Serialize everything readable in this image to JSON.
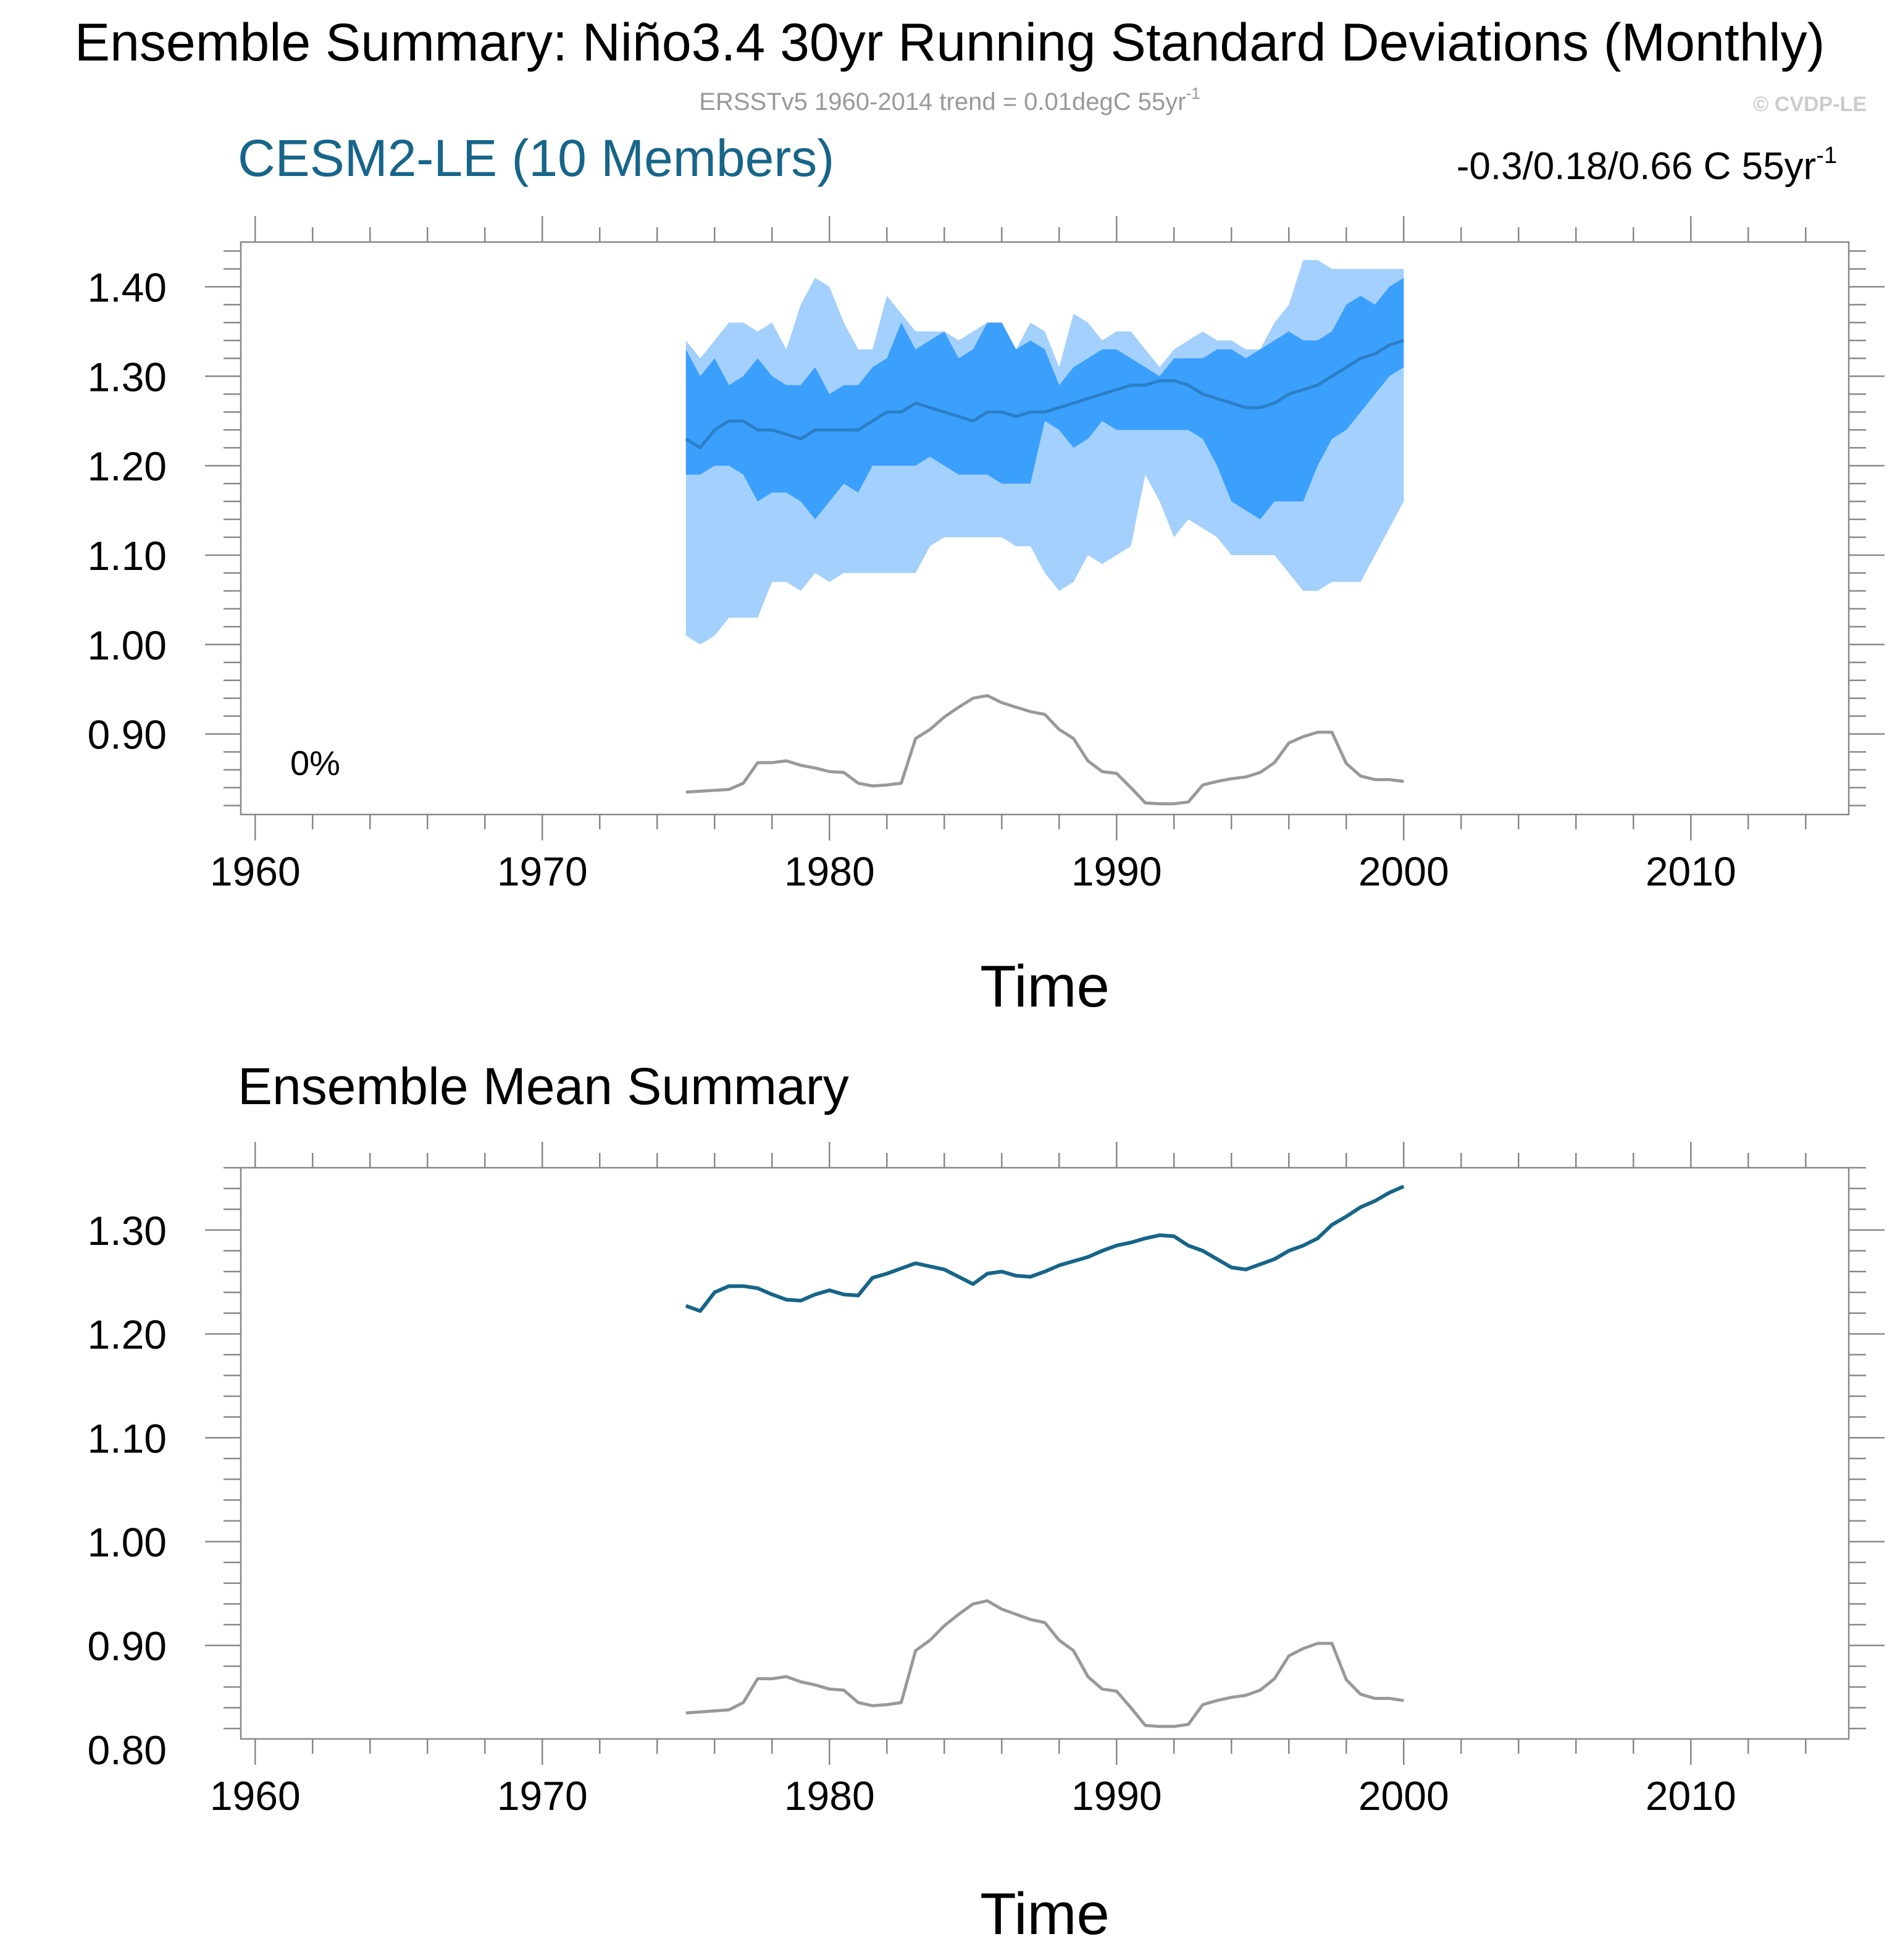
{
  "title": "Ensemble Summary: Niño3.4 30yr Running Standard Deviations (Monthly)",
  "subtitle": {
    "text": "ERSSTv5 1960-2014 trend = 0.01degC 55yr",
    "sup": "-1"
  },
  "copyright": "© CVDP-LE",
  "panel1": {
    "title": "CESM2-LE (10 Members)",
    "stats": {
      "text": "-0.3/0.18/0.66 C 55yr",
      "sup": "-1"
    },
    "percent": "0%",
    "xlabel": "Time"
  },
  "panel2": {
    "title": "Ensemble Mean Summary",
    "xlabel": "Time"
  },
  "colors": {
    "outer_band": "#a3d0fc",
    "inner_band": "#3b9ffc",
    "ensemble_mean_panel1": "#2b7fc6",
    "ensemble_mean_panel2": "#176589",
    "observations": "#999999",
    "title_model": "#176589",
    "subtitle": "#999999",
    "copyright": "#cccccc"
  },
  "chart_data": [
    {
      "type": "area",
      "title": "CESM2-LE (10 Members)",
      "xlabel": "Time",
      "ylabel": "",
      "xlim": [
        1959.5,
        2015.5
      ],
      "ylim": [
        0.81,
        1.45
      ],
      "xticks": [
        1960,
        1970,
        1980,
        1990,
        2000,
        2010
      ],
      "yticks": [
        0.9,
        1.0,
        1.1,
        1.2,
        1.3,
        1.4
      ],
      "ytick_labels": [
        "0.90",
        "1.00",
        "1.10",
        "1.20",
        "1.30",
        "1.40"
      ],
      "x": [
        1975,
        1975.5,
        1976,
        1976.5,
        1977,
        1977.5,
        1978,
        1978.5,
        1979,
        1979.5,
        1980,
        1980.5,
        1981,
        1981.5,
        1982,
        1982.5,
        1983,
        1983.5,
        1984,
        1984.5,
        1985,
        1985.5,
        1986,
        1986.5,
        1987,
        1987.5,
        1988,
        1988.5,
        1989,
        1989.5,
        1990,
        1990.5,
        1991,
        1991.5,
        1992,
        1992.5,
        1993,
        1993.5,
        1994,
        1994.5,
        1995,
        1995.5,
        1996,
        1996.5,
        1997,
        1997.5,
        1998,
        1998.5,
        1999,
        1999.5,
        2000
      ],
      "outer_upper": [
        1.34,
        1.32,
        1.34,
        1.36,
        1.36,
        1.35,
        1.36,
        1.33,
        1.38,
        1.41,
        1.4,
        1.36,
        1.33,
        1.33,
        1.39,
        1.37,
        1.35,
        1.35,
        1.35,
        1.34,
        1.35,
        1.36,
        1.35,
        1.33,
        1.36,
        1.35,
        1.31,
        1.37,
        1.36,
        1.34,
        1.35,
        1.35,
        1.33,
        1.31,
        1.33,
        1.34,
        1.35,
        1.34,
        1.34,
        1.33,
        1.33,
        1.36,
        1.38,
        1.43,
        1.43,
        1.42,
        1.42,
        1.42,
        1.42,
        1.42,
        1.42
      ],
      "inner_upper": [
        1.33,
        1.3,
        1.32,
        1.29,
        1.3,
        1.32,
        1.3,
        1.29,
        1.29,
        1.31,
        1.28,
        1.29,
        1.29,
        1.31,
        1.32,
        1.36,
        1.33,
        1.34,
        1.35,
        1.32,
        1.33,
        1.36,
        1.36,
        1.33,
        1.34,
        1.33,
        1.29,
        1.31,
        1.32,
        1.33,
        1.33,
        1.32,
        1.31,
        1.3,
        1.32,
        1.32,
        1.32,
        1.33,
        1.33,
        1.32,
        1.33,
        1.34,
        1.35,
        1.34,
        1.34,
        1.35,
        1.38,
        1.39,
        1.38,
        1.4,
        1.41
      ],
      "mean": [
        1.23,
        1.22,
        1.24,
        1.25,
        1.25,
        1.24,
        1.24,
        1.235,
        1.23,
        1.24,
        1.24,
        1.24,
        1.24,
        1.25,
        1.26,
        1.26,
        1.27,
        1.265,
        1.26,
        1.255,
        1.25,
        1.26,
        1.26,
        1.255,
        1.26,
        1.26,
        1.265,
        1.27,
        1.275,
        1.28,
        1.285,
        1.29,
        1.29,
        1.295,
        1.295,
        1.29,
        1.28,
        1.275,
        1.27,
        1.265,
        1.265,
        1.27,
        1.28,
        1.285,
        1.29,
        1.3,
        1.31,
        1.32,
        1.325,
        1.335,
        1.34
      ],
      "inner_lower": [
        1.19,
        1.19,
        1.2,
        1.2,
        1.19,
        1.16,
        1.17,
        1.17,
        1.16,
        1.14,
        1.16,
        1.18,
        1.17,
        1.2,
        1.2,
        1.2,
        1.2,
        1.21,
        1.2,
        1.19,
        1.19,
        1.19,
        1.18,
        1.18,
        1.18,
        1.25,
        1.24,
        1.22,
        1.23,
        1.25,
        1.24,
        1.24,
        1.24,
        1.24,
        1.24,
        1.24,
        1.23,
        1.2,
        1.16,
        1.15,
        1.14,
        1.16,
        1.16,
        1.16,
        1.2,
        1.23,
        1.24,
        1.26,
        1.28,
        1.3,
        1.31
      ],
      "outer_lower": [
        1.01,
        1.0,
        1.01,
        1.03,
        1.03,
        1.03,
        1.07,
        1.07,
        1.06,
        1.08,
        1.07,
        1.08,
        1.08,
        1.08,
        1.08,
        1.08,
        1.08,
        1.11,
        1.12,
        1.12,
        1.12,
        1.12,
        1.12,
        1.11,
        1.11,
        1.08,
        1.06,
        1.07,
        1.1,
        1.09,
        1.1,
        1.11,
        1.19,
        1.16,
        1.12,
        1.14,
        1.13,
        1.12,
        1.1,
        1.1,
        1.1,
        1.1,
        1.08,
        1.06,
        1.06,
        1.07,
        1.07,
        1.07,
        1.1,
        1.13,
        1.16
      ],
      "observations": [
        0.835,
        0.836,
        0.837,
        0.838,
        0.845,
        0.868,
        0.868,
        0.87,
        0.865,
        0.862,
        0.858,
        0.857,
        0.845,
        0.842,
        0.843,
        0.845,
        0.895,
        0.905,
        0.919,
        0.93,
        0.94,
        0.943,
        0.935,
        0.93,
        0.925,
        0.922,
        0.905,
        0.895,
        0.87,
        0.858,
        0.856,
        0.84,
        0.823,
        0.822,
        0.822,
        0.824,
        0.843,
        0.847,
        0.85,
        0.852,
        0.857,
        0.868,
        0.89,
        0.897,
        0.902,
        0.902,
        0.867,
        0.853,
        0.849,
        0.849,
        0.847
      ]
    },
    {
      "type": "line",
      "title": "Ensemble Mean Summary",
      "xlabel": "Time",
      "ylabel": "",
      "xlim": [
        1959.5,
        2015.5
      ],
      "ylim": [
        0.81,
        1.36
      ],
      "xticks": [
        1960,
        1970,
        1980,
        1990,
        2000,
        2010
      ],
      "yticks": [
        0.8,
        0.9,
        1.0,
        1.1,
        1.2,
        1.3
      ],
      "ytick_labels": [
        "0.80",
        "0.90",
        "1.00",
        "1.10",
        "1.20",
        "1.30"
      ],
      "x": [
        1975,
        1975.5,
        1976,
        1976.5,
        1977,
        1977.5,
        1978,
        1978.5,
        1979,
        1979.5,
        1980,
        1980.5,
        1981,
        1981.5,
        1982,
        1982.5,
        1983,
        1983.5,
        1984,
        1984.5,
        1985,
        1985.5,
        1986,
        1986.5,
        1987,
        1987.5,
        1988,
        1988.5,
        1989,
        1989.5,
        1990,
        1990.5,
        1991,
        1991.5,
        1992,
        1992.5,
        1993,
        1993.5,
        1994,
        1994.5,
        1995,
        1995.5,
        1996,
        1996.5,
        1997,
        1997.5,
        1998,
        1998.5,
        1999,
        1999.5,
        2000
      ],
      "series": [
        {
          "key": "ensemble_mean",
          "values": [
            1.227,
            1.222,
            1.24,
            1.246,
            1.246,
            1.244,
            1.238,
            1.233,
            1.232,
            1.238,
            1.242,
            1.238,
            1.237,
            1.254,
            1.258,
            1.263,
            1.268,
            1.265,
            1.262,
            1.255,
            1.248,
            1.258,
            1.26,
            1.256,
            1.255,
            1.26,
            1.266,
            1.27,
            1.274,
            1.28,
            1.285,
            1.288,
            1.292,
            1.295,
            1.294,
            1.285,
            1.28,
            1.272,
            1.264,
            1.262,
            1.267,
            1.272,
            1.28,
            1.285,
            1.292,
            1.305,
            1.313,
            1.322,
            1.328,
            1.336,
            1.342
          ]
        },
        {
          "key": "observations",
          "values": [
            0.835,
            0.836,
            0.837,
            0.838,
            0.845,
            0.868,
            0.868,
            0.87,
            0.865,
            0.862,
            0.858,
            0.857,
            0.845,
            0.842,
            0.843,
            0.845,
            0.895,
            0.905,
            0.919,
            0.93,
            0.94,
            0.943,
            0.935,
            0.93,
            0.925,
            0.922,
            0.905,
            0.895,
            0.87,
            0.858,
            0.856,
            0.84,
            0.823,
            0.822,
            0.822,
            0.824,
            0.843,
            0.847,
            0.85,
            0.852,
            0.857,
            0.868,
            0.89,
            0.897,
            0.902,
            0.902,
            0.867,
            0.853,
            0.849,
            0.849,
            0.847
          ]
        }
      ]
    }
  ]
}
